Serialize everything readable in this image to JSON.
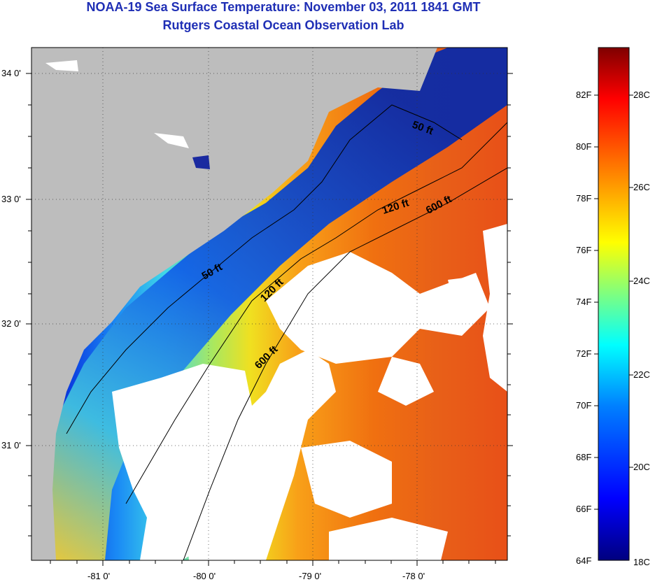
{
  "title_line1": "NOAA-19 Sea Surface Temperature:  November 03, 2011 1841 GMT",
  "title_line2": "Rutgers Coastal Ocean Observation Lab",
  "map": {
    "lat_labels": [
      "34 0'",
      "33 0'",
      "32 0'",
      "31 0'"
    ],
    "lon_labels": [
      "-81 0'",
      "-80 0'",
      "-79 0'",
      "-78 0'"
    ],
    "isobaths": [
      {
        "depth": "50 ft",
        "labels": [
          "50 ft",
          "50 ft"
        ]
      },
      {
        "depth": "120 ft",
        "labels": [
          "120 ft",
          "120 ft"
        ]
      },
      {
        "depth": "600 ft",
        "labels": [
          "600 ft",
          "600 ft"
        ]
      }
    ]
  },
  "colorbar": {
    "f_labels": [
      "82F",
      "80F",
      "78F",
      "76F",
      "74F",
      "72F",
      "70F",
      "68F",
      "66F",
      "64F"
    ],
    "c_labels": [
      "28C",
      "26C",
      "24C",
      "22C",
      "20C",
      "18C"
    ],
    "colors": [
      "#00007f",
      "#0000ff",
      "#007fff",
      "#00ffff",
      "#7fff7f",
      "#ffff00",
      "#ff7f00",
      "#ff0000",
      "#7f0000"
    ]
  },
  "colors": {
    "land": "#bdbdbd",
    "cloud": "#ffffff",
    "title": "#1f2fb5"
  }
}
